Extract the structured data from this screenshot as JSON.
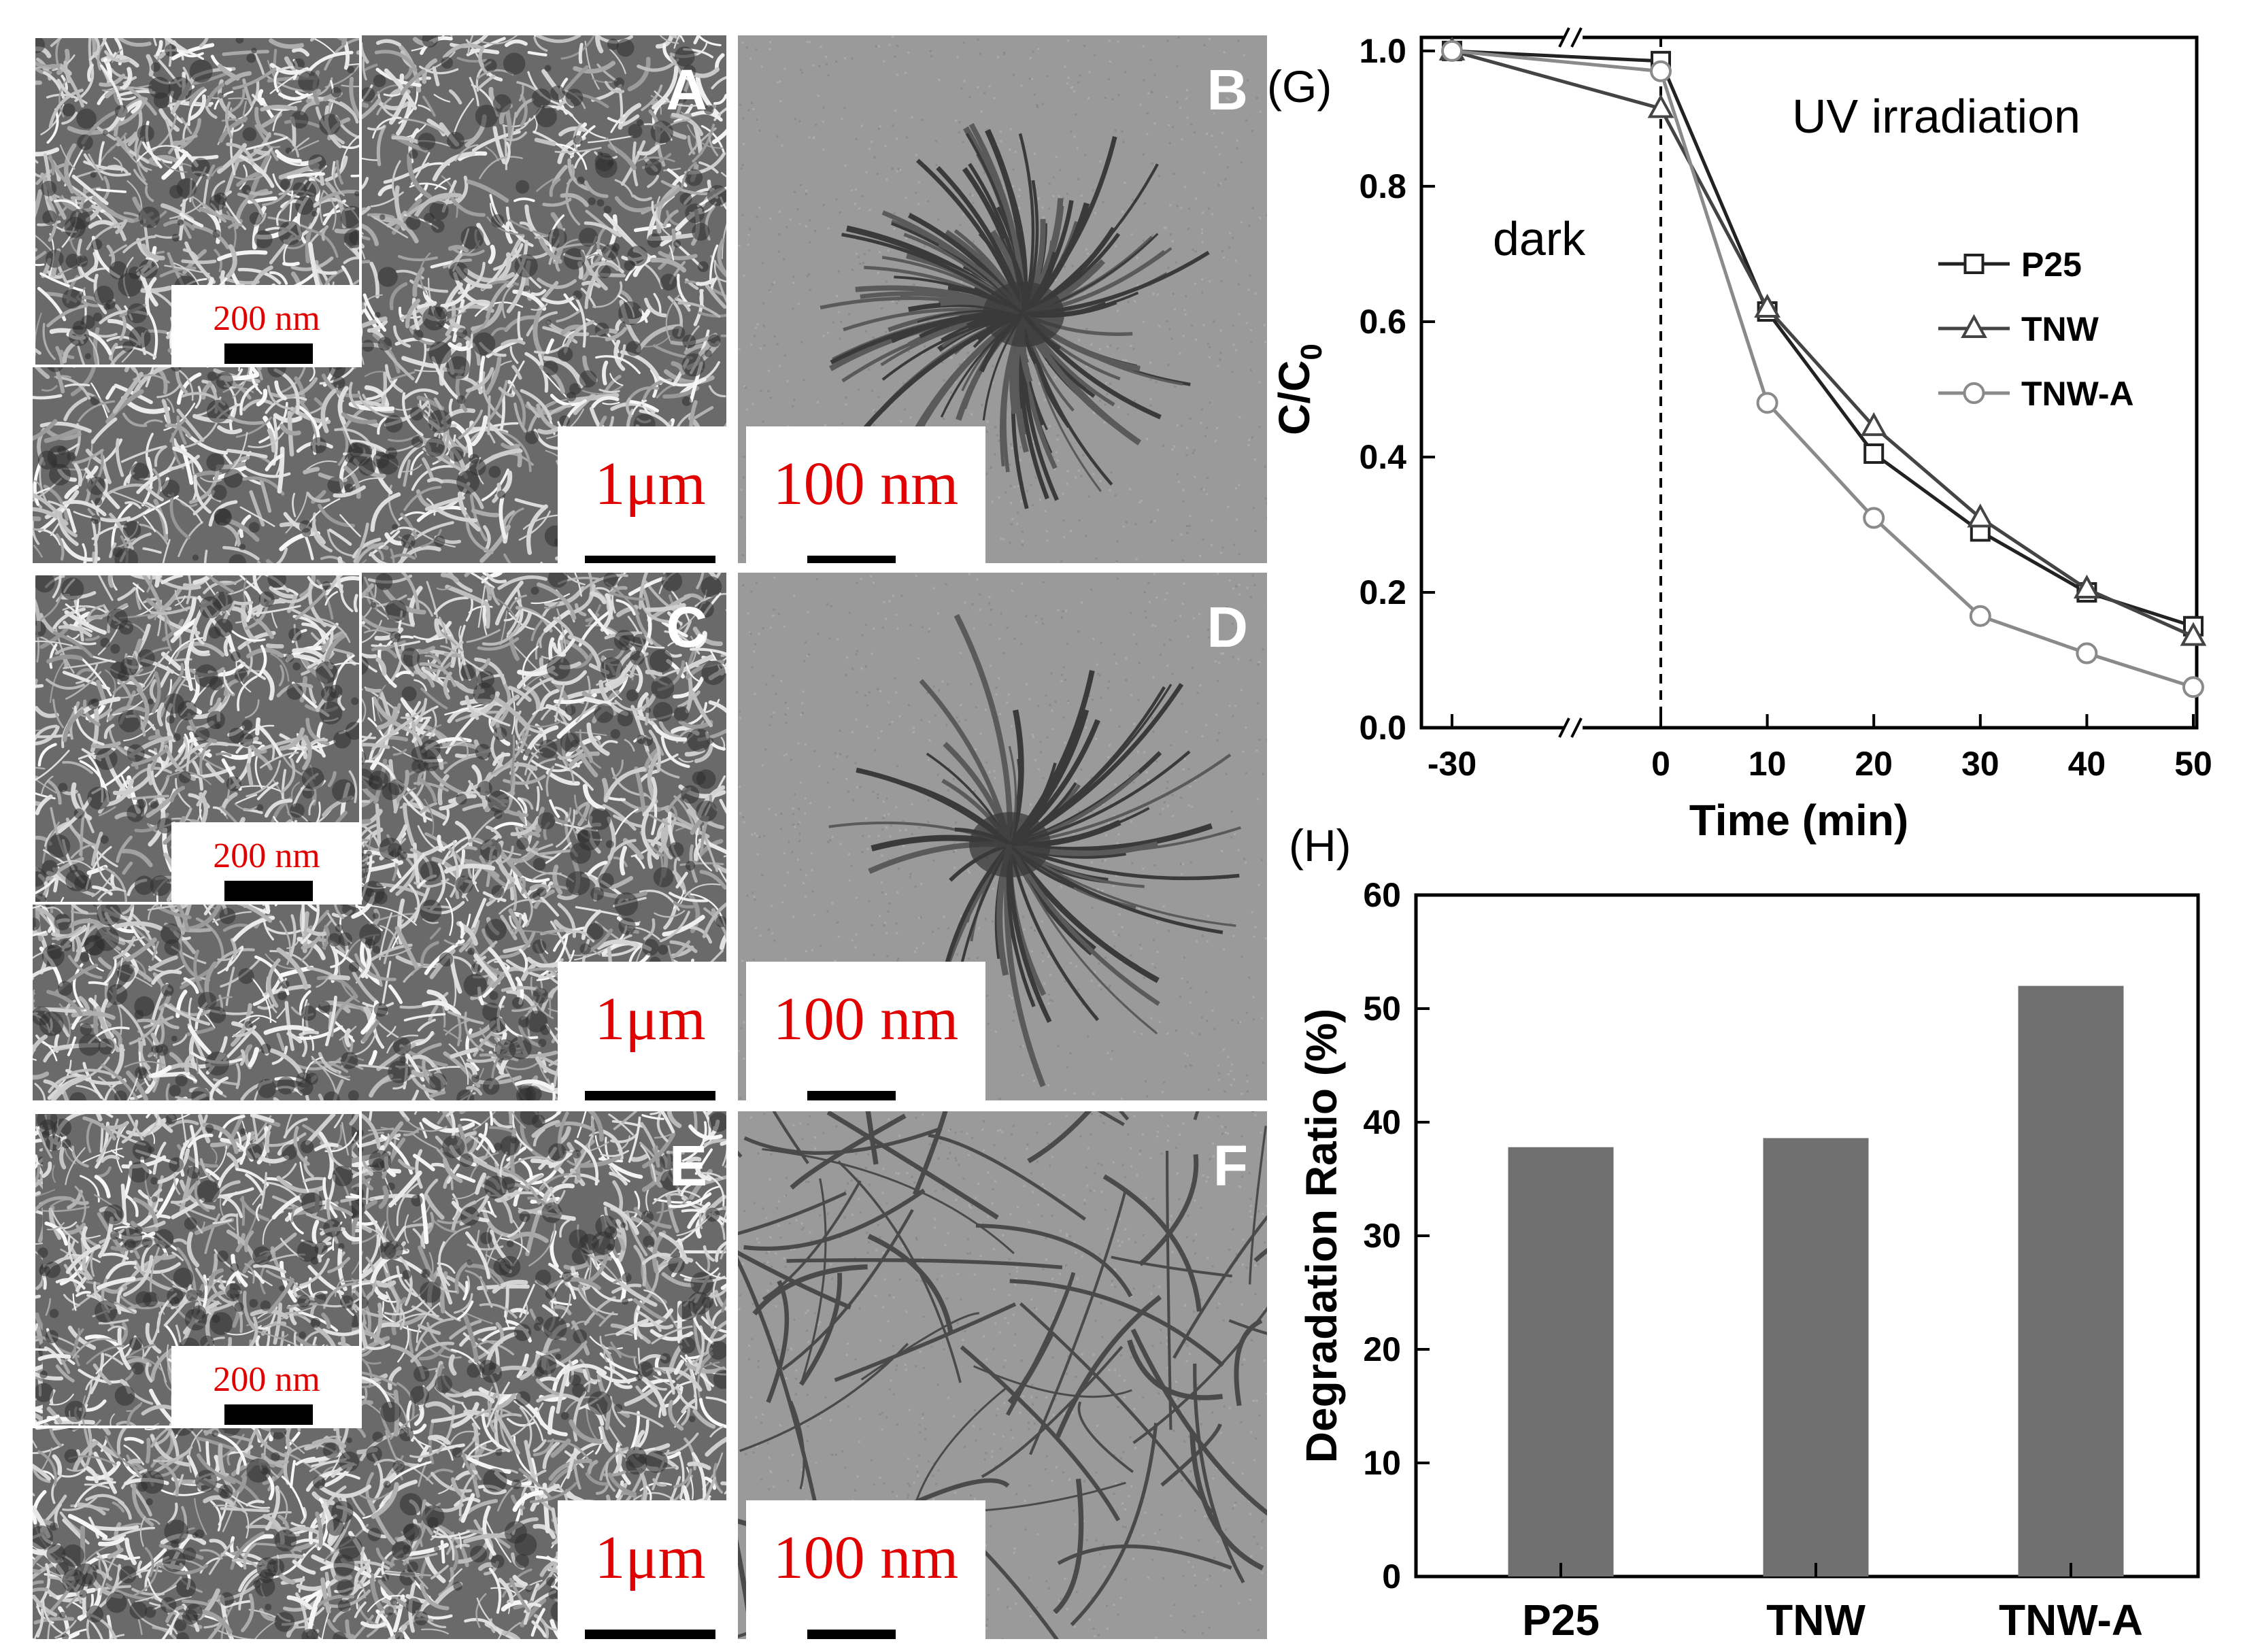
{
  "panels": [
    {
      "id": "A",
      "label": "A",
      "scale": "1μm",
      "inset_scale": "200 nm"
    },
    {
      "id": "B",
      "label": "B",
      "scale": "100 nm"
    },
    {
      "id": "C",
      "label": "C",
      "scale": "1μm",
      "inset_scale": "200 nm"
    },
    {
      "id": "D",
      "label": "D",
      "scale": "100 nm"
    },
    {
      "id": "E",
      "label": "E",
      "scale": "1μm",
      "inset_scale": "200 nm"
    },
    {
      "id": "F",
      "label": "F",
      "scale": "100 nm"
    }
  ],
  "chart_data": [
    {
      "panel_label": "(G)",
      "type": "line",
      "xlabel": "Time (min)",
      "ylabel": "C/C0",
      "x": [
        -30,
        0,
        10,
        20,
        30,
        40,
        50
      ],
      "xticks": [
        "-30",
        "0",
        "10",
        "20",
        "30",
        "40",
        "50"
      ],
      "xaxis_break": true,
      "yticks": [
        "0.0",
        "0.2",
        "0.4",
        "0.6",
        "0.8",
        "1.0"
      ],
      "ylim": [
        0,
        1.02
      ],
      "series": [
        {
          "name": "P25",
          "marker": "square",
          "color": "#222222",
          "values": [
            1.0,
            0.985,
            0.615,
            0.405,
            0.29,
            0.2,
            0.15
          ]
        },
        {
          "name": "TNW",
          "marker": "triangle",
          "color": "#444444",
          "values": [
            1.0,
            0.915,
            0.62,
            0.445,
            0.31,
            0.205,
            0.135
          ]
        },
        {
          "name": "TNW-A",
          "marker": "circle",
          "color": "#8a8a8a",
          "values": [
            1.0,
            0.97,
            0.48,
            0.31,
            0.165,
            0.11,
            0.06
          ]
        }
      ],
      "annotations": {
        "dark": "dark",
        "uv": "UV irradiation"
      },
      "legend_position": "right"
    },
    {
      "panel_label": "(H)",
      "type": "bar",
      "ylabel": "Degradation Ratio (%)",
      "categories": [
        "P25",
        "TNW",
        "TNW-A"
      ],
      "values": [
        37.8,
        38.6,
        52.0
      ],
      "yticks": [
        "0",
        "10",
        "20",
        "30",
        "40",
        "50",
        "60"
      ],
      "ylim": [
        0,
        60
      ],
      "bar_color": "#707070"
    }
  ]
}
